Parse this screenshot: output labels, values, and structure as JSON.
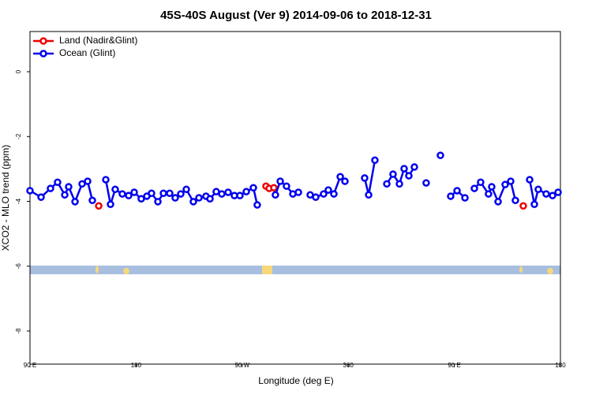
{
  "chart_data": {
    "type": "line",
    "title": "45S-40S August (Ver 9)   2014-09-06 to 2018-12-31",
    "x_label": "Longitude (deg E)",
    "y_label": "XCO2 - MLO trend (ppm)",
    "xlim": [
      90,
      540
    ],
    "xticks": [
      {
        "value": 90,
        "label": "90 E"
      },
      {
        "value": 180,
        "label": "180"
      },
      {
        "value": 270,
        "label": "90 W"
      },
      360,
      {
        "value": 450,
        "label": "90 E"
      },
      {
        "value": 540,
        "label": "180"
      }
    ],
    "ylim": [
      -9.02,
      1.24
    ],
    "yticks": [
      0,
      -2,
      -4,
      -6,
      -8
    ],
    "legend": "upper left",
    "series": [
      {
        "name": "Land (Nadir&Glint)",
        "color": "#ee0000",
        "x": [
          148.3,
          null,
          290.2,
          292.9,
          296.9,
          null,
          508.5
        ],
        "values": [
          -4.14,
          null,
          -3.53,
          -3.6,
          -3.58,
          null,
          -4.14
        ]
      },
      {
        "name": "Ocean (Glint)",
        "color": "#0000ee",
        "x": [
          90,
          99.4,
          107.4,
          113.4,
          119.5,
          122.8,
          128.2,
          134.2,
          138.9,
          142.9,
          null,
          154.3,
          158.3,
          162.3,
          168.3,
          173.7,
          178.4,
          184.4,
          189.1,
          193.1,
          198.5,
          203.2,
          208.5,
          213.2,
          217.9,
          222.6,
          228.6,
          233.3,
          239.3,
          242.7,
          248.0,
          252.7,
          258.1,
          263.4,
          268.1,
          273.5,
          279.5,
          282.8,
          null,
          298.2,
          302.3,
          307.6,
          313.0,
          317.7,
          null,
          327.7,
          332.4,
          339.1,
          343.1,
          347.8,
          353.2,
          357.2,
          null,
          373.9,
          377.3,
          382.6,
          null,
          392.7,
          398.0,
          403.4,
          407.4,
          411.4,
          416.1,
          null,
          426.1,
          null,
          438.2,
          null,
          446.9,
          452.3,
          459.0,
          null,
          467.0,
          472.3,
          479.0,
          481.7,
          487.1,
          493.1,
          497.8,
          501.8,
          null,
          513.9,
          517.9,
          521.2,
          527.9,
          533.3,
          538.0
        ],
        "values": [
          -3.67,
          -3.87,
          -3.6,
          -3.41,
          -3.8,
          -3.55,
          -4.01,
          -3.46,
          -3.38,
          -3.97,
          null,
          -3.33,
          -4.09,
          -3.63,
          -3.77,
          -3.82,
          -3.72,
          -3.92,
          -3.84,
          -3.75,
          -4.01,
          -3.75,
          -3.75,
          -3.89,
          -3.77,
          -3.63,
          -4.01,
          -3.89,
          -3.84,
          -3.92,
          -3.7,
          -3.77,
          -3.72,
          -3.82,
          -3.82,
          -3.7,
          -3.58,
          -4.11,
          null,
          -3.8,
          -3.38,
          -3.53,
          -3.77,
          -3.72,
          null,
          -3.8,
          -3.87,
          -3.77,
          -3.65,
          -3.77,
          -3.24,
          -3.38,
          null,
          -3.28,
          -3.8,
          -2.73,
          null,
          -3.46,
          -3.16,
          -3.46,
          -2.99,
          -3.21,
          -2.94,
          null,
          -3.43,
          null,
          -2.58,
          null,
          -3.84,
          -3.67,
          -3.89,
          null,
          -3.6,
          -3.41,
          -3.77,
          -3.55,
          -4.01,
          -3.481,
          -3.38,
          -3.97,
          null,
          -3.33,
          -4.09,
          -3.63,
          -3.77,
          -3.82,
          -3.72
        ]
      }
    ]
  }
}
